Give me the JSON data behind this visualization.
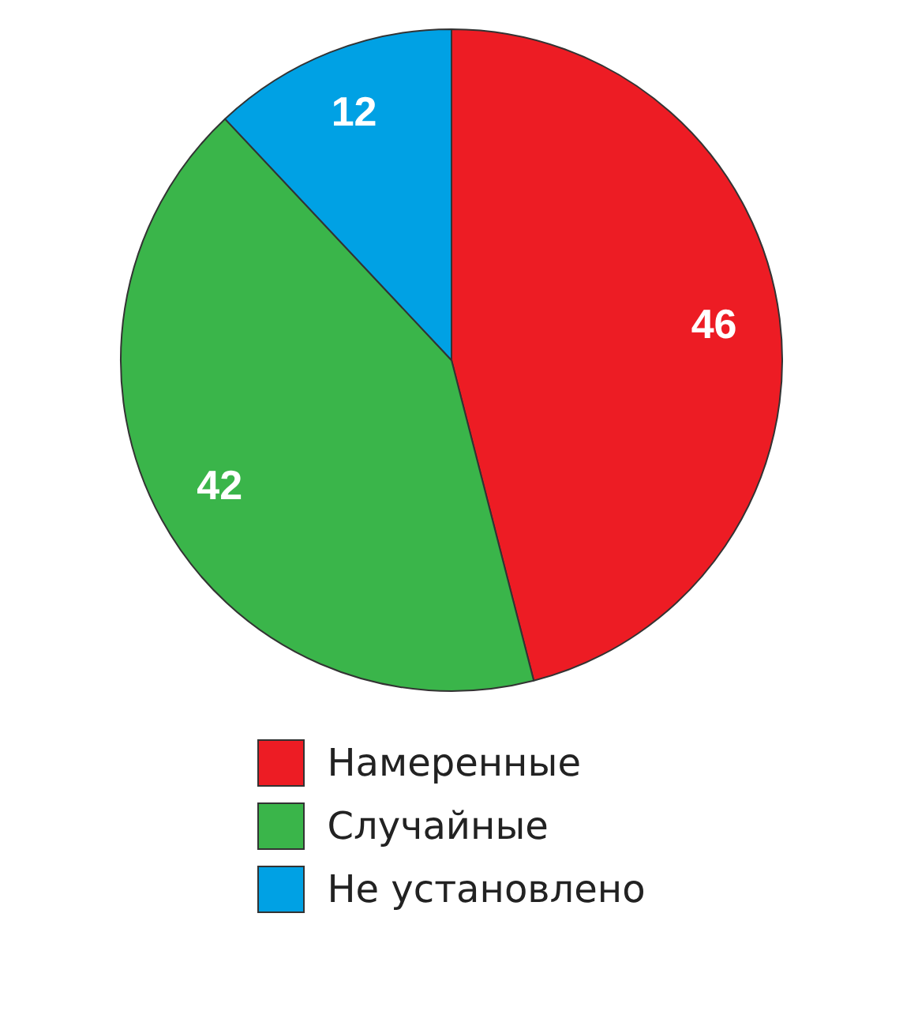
{
  "chart_data": {
    "type": "pie",
    "categories": [
      "Намеренные",
      "Случайные",
      "Не установлено"
    ],
    "values": [
      46,
      42,
      12
    ],
    "colors": [
      "#ed1c24",
      "#3ab54a",
      "#00a1e4"
    ],
    "data_labels": true,
    "legend": "bottom"
  }
}
